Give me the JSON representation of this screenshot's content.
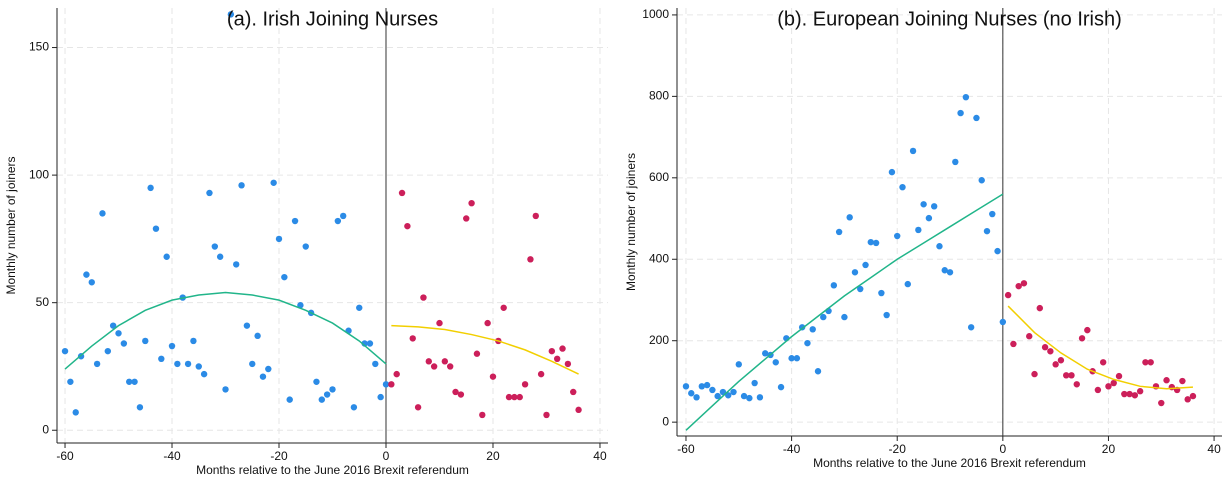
{
  "chart_data": [
    {
      "type": "scatter",
      "title": "(a). Irish Joining Nurses",
      "xlabel": "Months relative to the June 2016 Brexit referendum",
      "ylabel": "Monthly number of joiners",
      "xlim": [
        -61.5,
        41.5
      ],
      "ylim": [
        -5,
        165.5
      ],
      "xticks": [
        -60,
        -40,
        -20,
        0,
        20,
        40
      ],
      "yticks": [
        0,
        50,
        100,
        150
      ],
      "grid": true,
      "vline": 0,
      "series": [
        {
          "type": "scatter",
          "color": "#2b8be6",
          "x": [
            -60,
            -59,
            -58,
            -57,
            -56,
            -55,
            -54,
            -53,
            -52,
            -51,
            -50,
            -49,
            -48,
            -47,
            -46,
            -45,
            -44,
            -43,
            -42,
            -41,
            -40,
            -39,
            -38,
            -37,
            -36,
            -35,
            -34,
            -33,
            -32,
            -31,
            -30,
            -29,
            -28,
            -27,
            -26,
            -25,
            -24,
            -23,
            -22,
            -21,
            -20,
            -19,
            -18,
            -17,
            -16,
            -15,
            -14,
            -13,
            -12,
            -11,
            -10,
            -9,
            -8,
            -7,
            -6,
            -5,
            -4,
            -3,
            -2,
            -1,
            0
          ],
          "values": [
            31,
            19,
            7,
            29,
            61,
            58,
            26,
            85,
            31,
            41,
            38,
            34,
            19,
            19,
            9,
            35,
            95,
            79,
            28,
            68,
            33,
            26,
            52,
            26,
            35,
            25,
            22,
            93,
            72,
            68,
            16,
            163,
            65,
            96,
            41,
            26,
            37,
            21,
            24,
            97,
            75,
            60,
            12,
            82,
            49,
            72,
            46,
            19,
            12,
            14,
            16,
            82,
            84,
            39,
            9,
            48,
            34,
            34,
            26,
            13,
            18
          ]
        },
        {
          "type": "scatter",
          "color": "#cc1f5a",
          "x": [
            1,
            2,
            3,
            4,
            5,
            6,
            7,
            8,
            9,
            10,
            11,
            12,
            13,
            14,
            15,
            16,
            17,
            18,
            19,
            20,
            21,
            22,
            23,
            24,
            25,
            26,
            27,
            28,
            29,
            30,
            31,
            32,
            33,
            34,
            35,
            36
          ],
          "values": [
            18,
            22,
            93,
            80,
            36,
            9,
            52,
            27,
            25,
            42,
            27,
            25,
            15,
            14,
            83,
            89,
            30,
            6,
            42,
            21,
            35,
            48,
            13,
            13,
            13,
            18,
            67,
            84,
            22,
            6,
            31,
            28,
            32,
            26,
            15,
            8
          ]
        },
        {
          "type": "line",
          "color": "#21b58a",
          "x": [
            -60,
            -55,
            -50,
            -45,
            -40,
            -35,
            -30,
            -25,
            -20,
            -15,
            -10,
            -5,
            0
          ],
          "values": [
            24,
            33,
            41,
            47,
            51,
            53,
            54,
            53,
            51,
            47,
            42,
            35,
            26
          ]
        },
        {
          "type": "line",
          "color": "#f2cf00",
          "x": [
            1,
            6,
            11,
            16,
            21,
            26,
            31,
            36
          ],
          "values": [
            41,
            40.5,
            39.5,
            37.5,
            35,
            31.5,
            27,
            22
          ]
        }
      ]
    },
    {
      "type": "scatter",
      "title": "(b). European Joining Nurses (no Irish)",
      "xlabel": "Months relative to the June 2016 Brexit referendum",
      "ylabel": "Monthly number of joiners",
      "xlim": [
        -61.7,
        41.5
      ],
      "ylim": [
        -34,
        1017
      ],
      "xticks": [
        -60,
        -40,
        -20,
        0,
        20,
        40
      ],
      "yticks": [
        0,
        200,
        400,
        600,
        800,
        1000
      ],
      "grid": true,
      "vline": 0,
      "series": [
        {
          "type": "scatter",
          "color": "#2b8be6",
          "x": [
            -60,
            -59,
            -58,
            -57,
            -56,
            -55,
            -54,
            -53,
            -52,
            -51,
            -50,
            -49,
            -48,
            -47,
            -46,
            -45,
            -44,
            -43,
            -42,
            -41,
            -40,
            -39,
            -38,
            -37,
            -36,
            -35,
            -34,
            -33,
            -32,
            -31,
            -30,
            -29,
            -28,
            -27,
            -26,
            -25,
            -24,
            -23,
            -22,
            -21,
            -20,
            -19,
            -18,
            -17,
            -16,
            -15,
            -14,
            -13,
            -12,
            -11,
            -10,
            -9,
            -8,
            -7,
            -6,
            -5,
            -4,
            -3,
            -2,
            -1,
            0
          ],
          "values": [
            88,
            71,
            61,
            88,
            91,
            79,
            64,
            74,
            66,
            74,
            142,
            64,
            59,
            96,
            61,
            169,
            165,
            147,
            86,
            206,
            157,
            157,
            233,
            194,
            228,
            125,
            258,
            273,
            336,
            467,
            258,
            503,
            368,
            327,
            386,
            442,
            440,
            317,
            263,
            614,
            457,
            577,
            339,
            666,
            472,
            535,
            501,
            530,
            432,
            373,
            368,
            639,
            759,
            798,
            233,
            747,
            594,
            469,
            511,
            420,
            246
          ]
        },
        {
          "type": "scatter",
          "color": "#cc1f5a",
          "x": [
            1,
            2,
            3,
            4,
            5,
            6,
            7,
            8,
            9,
            10,
            11,
            12,
            13,
            14,
            15,
            16,
            17,
            18,
            19,
            20,
            21,
            22,
            23,
            24,
            25,
            26,
            27,
            28,
            29,
            30,
            31,
            32,
            33,
            34,
            35,
            36
          ],
          "values": [
            312,
            192,
            334,
            341,
            211,
            118,
            280,
            184,
            174,
            142,
            152,
            115,
            115,
            93,
            206,
            226,
            125,
            79,
            147,
            88,
            96,
            113,
            69,
            69,
            66,
            76,
            147,
            147,
            88,
            47,
            103,
            86,
            79,
            101,
            56,
            64
          ]
        },
        {
          "type": "line",
          "color": "#21b58a",
          "x": [
            -60,
            -55,
            -50,
            -45,
            -40,
            -35,
            -30,
            -25,
            -20,
            -15,
            -10,
            -5,
            0
          ],
          "values": [
            -20,
            40,
            100,
            155,
            210,
            260,
            310,
            355,
            400,
            440,
            480,
            520,
            560
          ]
        },
        {
          "type": "line",
          "color": "#f2cf00",
          "x": [
            1,
            6,
            11,
            16,
            21,
            26,
            31,
            36
          ],
          "values": [
            285,
            220,
            170,
            130,
            105,
            88,
            82,
            86
          ]
        }
      ]
    }
  ]
}
